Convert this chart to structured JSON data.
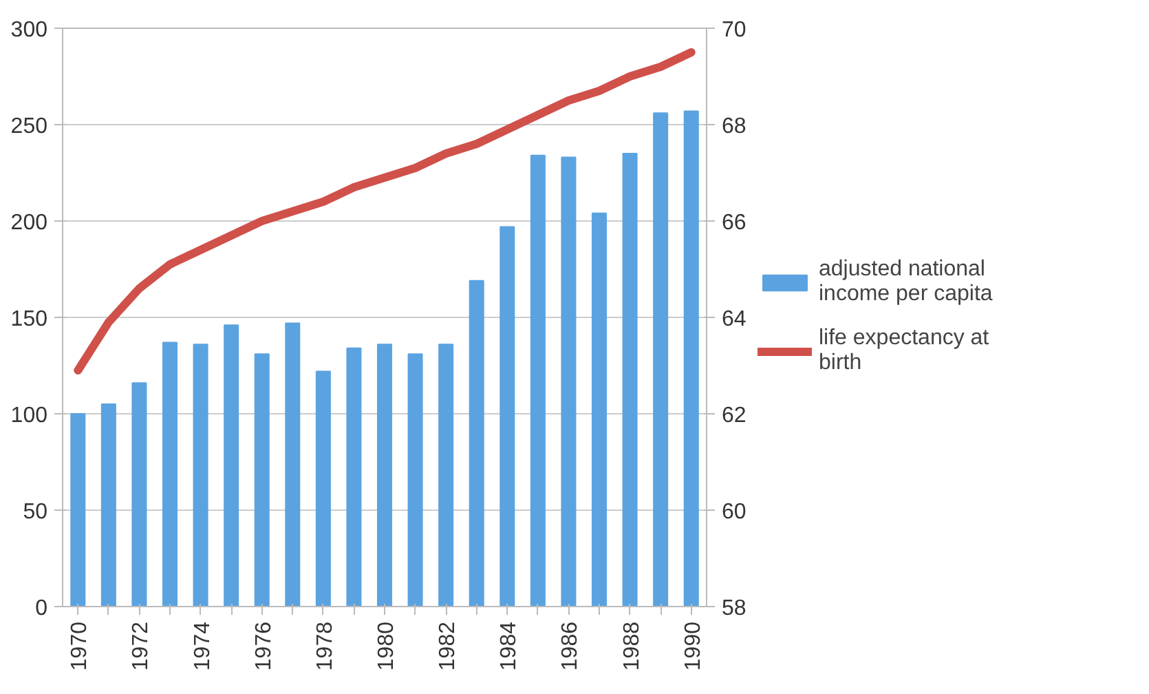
{
  "chart_data": {
    "type": "bar",
    "categories": [
      "1970",
      null,
      "1972",
      null,
      "1974",
      null,
      "1976",
      null,
      "1978",
      null,
      "1980",
      null,
      "1982",
      null,
      "1984",
      null,
      "1986",
      null,
      "1988",
      null,
      "1990"
    ],
    "series": [
      {
        "name": "adjusted national income per capita",
        "color": "#5ba3e0",
        "values": [
          100,
          105,
          116,
          137,
          136,
          146,
          131,
          147,
          122,
          134,
          136,
          131,
          136,
          169,
          197,
          234,
          233,
          204,
          235,
          256,
          257
        ]
      },
      {
        "name": "life expectancy at birth",
        "type": "line",
        "axis": "y2",
        "color": "#d0504a",
        "values": [
          62.9,
          63.9,
          64.6,
          65.1,
          65.4,
          65.7,
          66.0,
          66.2,
          66.4,
          66.7,
          66.9,
          67.1,
          67.4,
          67.6,
          67.9,
          68.2,
          68.5,
          68.7,
          69.0,
          69.2,
          69.5
        ]
      }
    ],
    "ylim": [
      0,
      300
    ],
    "yticks": [
      0,
      50,
      100,
      150,
      200,
      250,
      300
    ],
    "y2lim": [
      58,
      70
    ],
    "y2ticks": [
      58,
      60,
      62,
      64,
      66,
      68,
      70
    ],
    "grid": "y",
    "legend": "right"
  }
}
